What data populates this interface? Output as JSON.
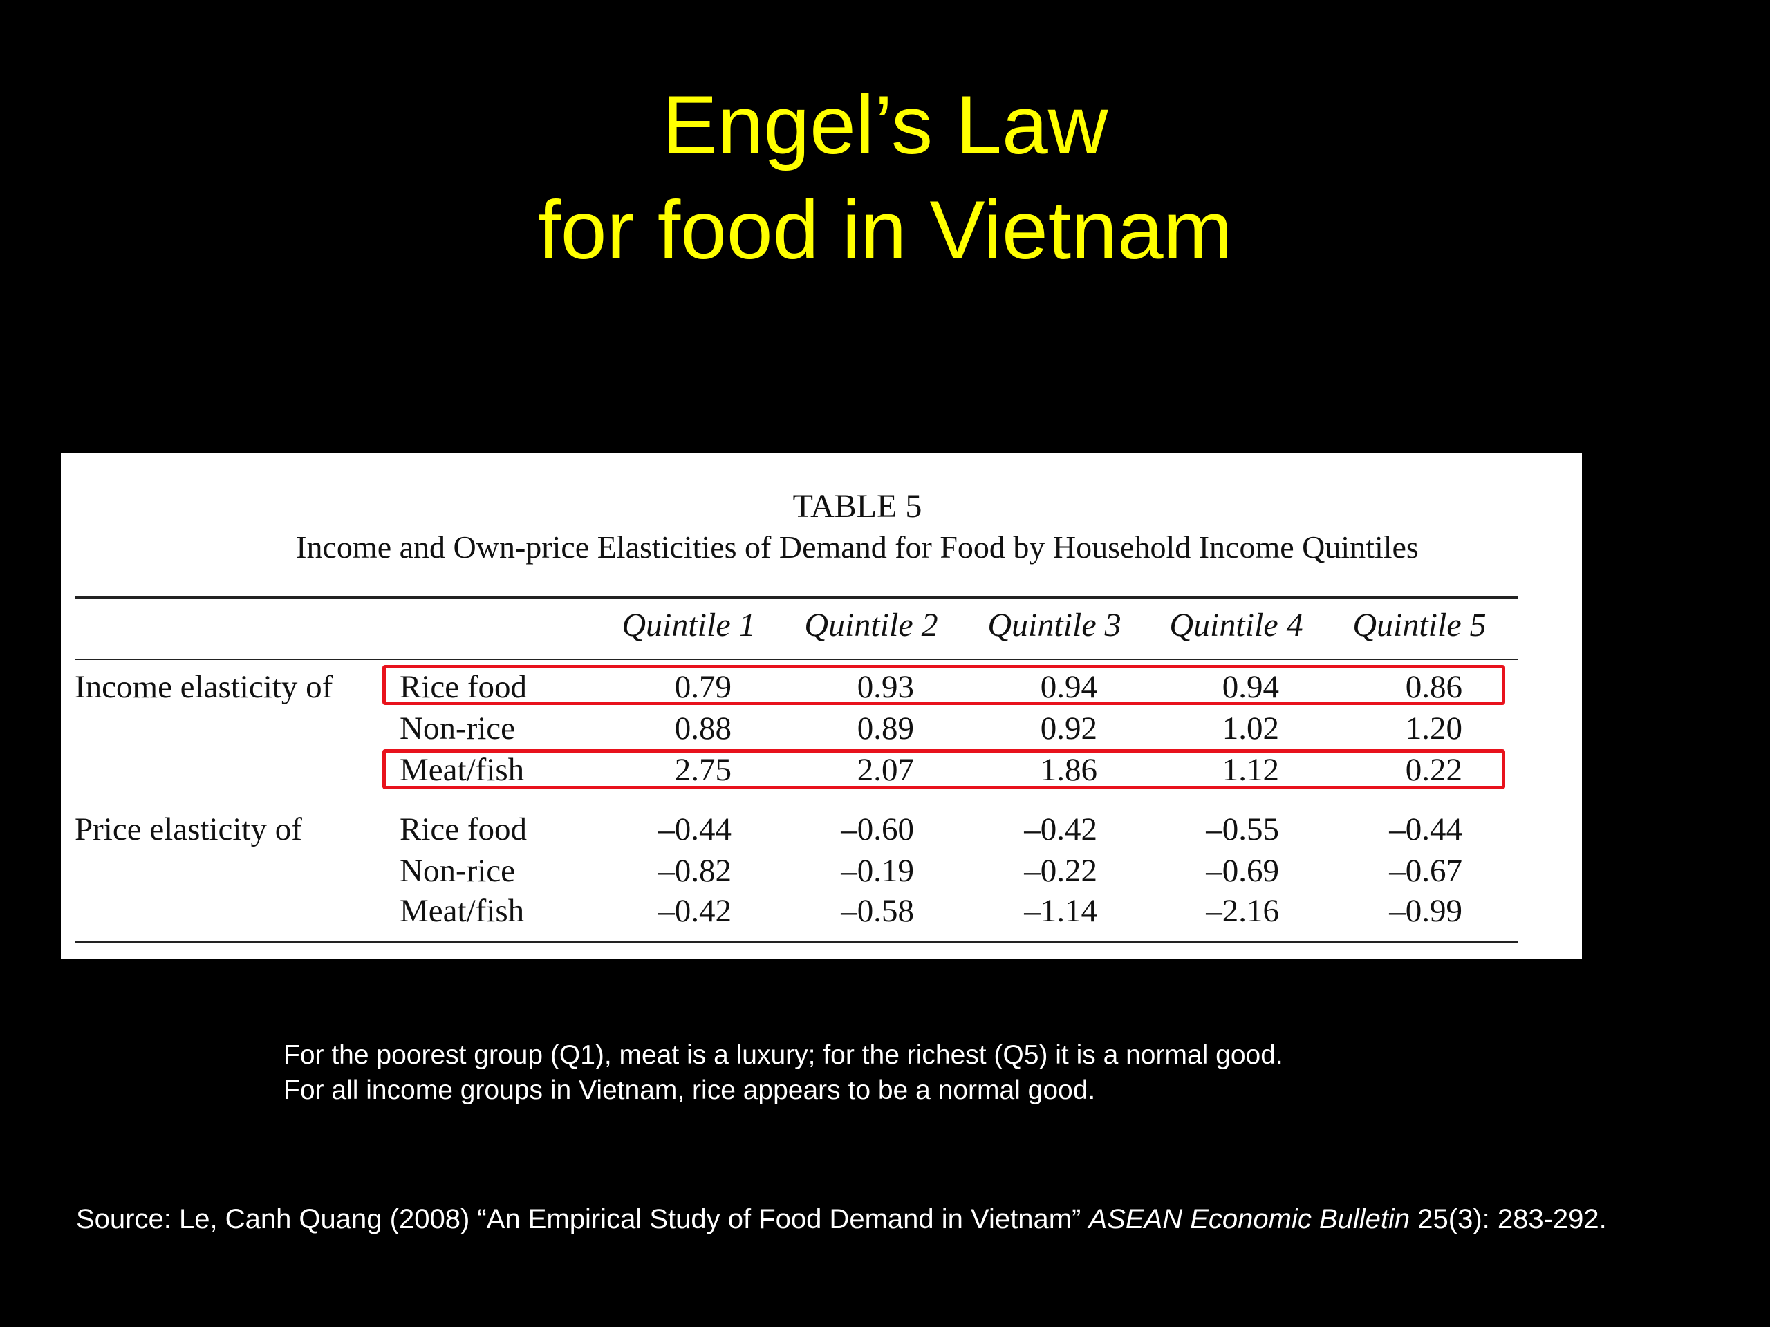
{
  "slide": {
    "title_line1": "Engel’s Law",
    "title_line2": "for food in Vietnam"
  },
  "table": {
    "number": "TABLE 5",
    "caption": "Income and Own-price Elasticities of Demand for Food by Household Income Quintiles",
    "columns": [
      "Quintile 1",
      "Quintile 2",
      "Quintile 3",
      "Quintile 4",
      "Quintile 5"
    ],
    "groups": [
      {
        "label": "Income elasticity of",
        "rows": [
          {
            "label": "Rice food",
            "values": [
              "0.79",
              "0.93",
              "0.94",
              "0.94",
              "0.86"
            ]
          },
          {
            "label": "Non-rice",
            "values": [
              "0.88",
              "0.89",
              "0.92",
              "1.02",
              "1.20"
            ]
          },
          {
            "label": "Meat/fish",
            "values": [
              "2.75",
              "2.07",
              "1.86",
              "1.12",
              "0.22"
            ]
          }
        ]
      },
      {
        "label": "Price elasticity of",
        "rows": [
          {
            "label": "Rice food",
            "values": [
              "–0.44",
              "–0.60",
              "–0.42",
              "–0.55",
              "–0.44"
            ]
          },
          {
            "label": "Non-rice",
            "values": [
              "–0.82",
              "–0.19",
              "–0.22",
              "–0.69",
              "–0.67"
            ]
          },
          {
            "label": "Meat/fish",
            "values": [
              "–0.42",
              "–0.58",
              "–1.14",
              "–2.16",
              "–0.99"
            ]
          }
        ]
      }
    ],
    "highlight_color": "#e8121c"
  },
  "notes": {
    "line1": "For the poorest group (Q1), meat is a luxury; for  the richest (Q5) it is a normal good.",
    "line2": "For all income groups in Vietnam, rice appears to be a normal good."
  },
  "source": {
    "prefix": "Source: Le, Canh Quang (2008) “An Empirical Study of Food Demand in Vietnam” ",
    "journal": "ASEAN Economic Bulletin",
    "suffix": " 25(3): 283-292."
  },
  "colors": {
    "background": "#000000",
    "title": "#ffff00",
    "body_text": "#ffffff",
    "table_background": "#ffffff"
  }
}
